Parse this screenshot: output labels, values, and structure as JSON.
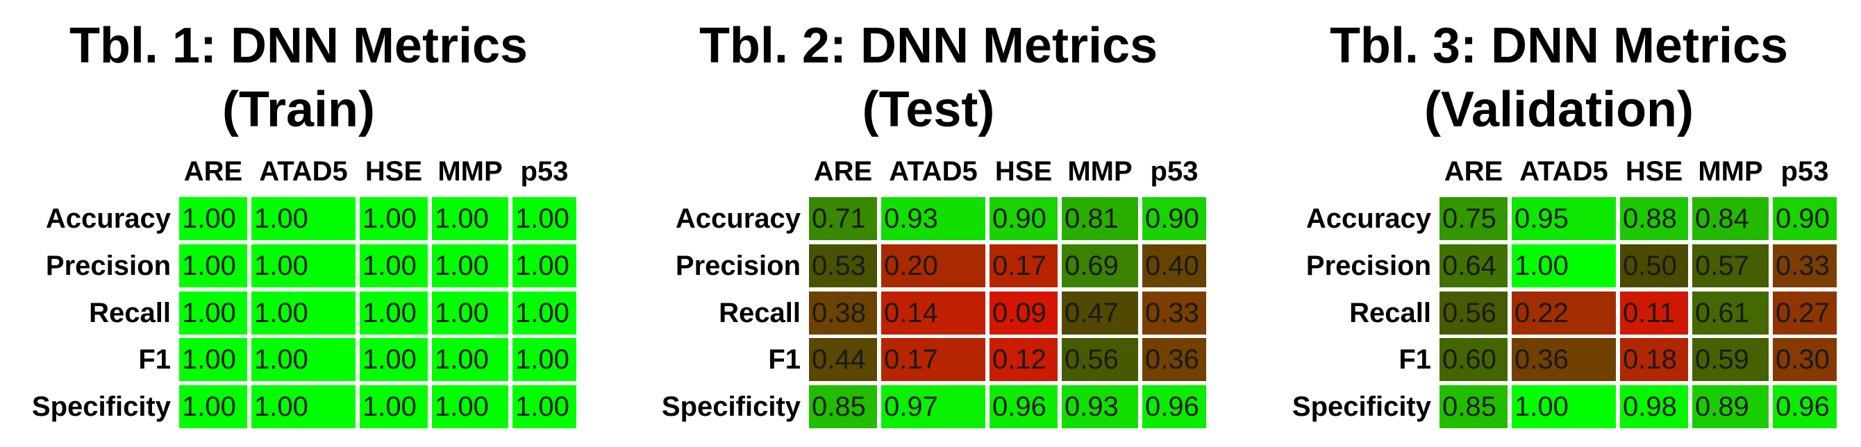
{
  "chart_data": [
    {
      "type": "table",
      "title": [
        "Tbl. 1: DNN Metrics",
        "(Train)"
      ],
      "columns": [
        "ARE",
        "ATAD5",
        "HSE",
        "MMP",
        "p53"
      ],
      "rows": [
        "Accuracy",
        "Precision",
        "Recall",
        "F1",
        "Specificity"
      ],
      "values": [
        [
          "1.00",
          "1.00",
          "1.00",
          "1.00",
          "1.00"
        ],
        [
          "1.00",
          "1.00",
          "1.00",
          "1.00",
          "1.00"
        ],
        [
          "1.00",
          "1.00",
          "1.00",
          "1.00",
          "1.00"
        ],
        [
          "1.00",
          "1.00",
          "1.00",
          "1.00",
          "1.00"
        ],
        [
          "1.00",
          "1.00",
          "1.00",
          "1.00",
          "1.00"
        ]
      ],
      "color_scale": {
        "low": "#ff0000",
        "high": "#00ff00"
      }
    },
    {
      "type": "table",
      "title": [
        "Tbl. 2: DNN Metrics",
        "(Test)"
      ],
      "columns": [
        "ARE",
        "ATAD5",
        "HSE",
        "MMP",
        "p53"
      ],
      "rows": [
        "Accuracy",
        "Precision",
        "Recall",
        "F1",
        "Specificity"
      ],
      "values": [
        [
          "0.71",
          "0.93",
          "0.90",
          "0.81",
          "0.90"
        ],
        [
          "0.53",
          "0.20",
          "0.17",
          "0.69",
          "0.40"
        ],
        [
          "0.38",
          "0.14",
          "0.09",
          "0.47",
          "0.33"
        ],
        [
          "0.44",
          "0.17",
          "0.12",
          "0.56",
          "0.36"
        ],
        [
          "0.85",
          "0.97",
          "0.96",
          "0.93",
          "0.96"
        ]
      ],
      "color_scale": {
        "low": "#ff0000",
        "high": "#00ff00"
      }
    },
    {
      "type": "table",
      "title": [
        "Tbl. 3: DNN Metrics",
        "(Validation)"
      ],
      "columns": [
        "ARE",
        "ATAD5",
        "HSE",
        "MMP",
        "p53"
      ],
      "rows": [
        "Accuracy",
        "Precision",
        "Recall",
        "F1",
        "Specificity"
      ],
      "values": [
        [
          "0.75",
          "0.95",
          "0.88",
          "0.84",
          "0.90"
        ],
        [
          "0.64",
          "1.00",
          "0.50",
          "0.57",
          "0.33"
        ],
        [
          "0.56",
          "0.22",
          "0.11",
          "0.61",
          "0.27"
        ],
        [
          "0.60",
          "0.36",
          "0.18",
          "0.59",
          "0.30"
        ],
        [
          "0.85",
          "1.00",
          "0.98",
          "0.89",
          "0.96"
        ]
      ],
      "color_scale": {
        "low": "#ff0000",
        "high": "#00ff00"
      }
    }
  ]
}
